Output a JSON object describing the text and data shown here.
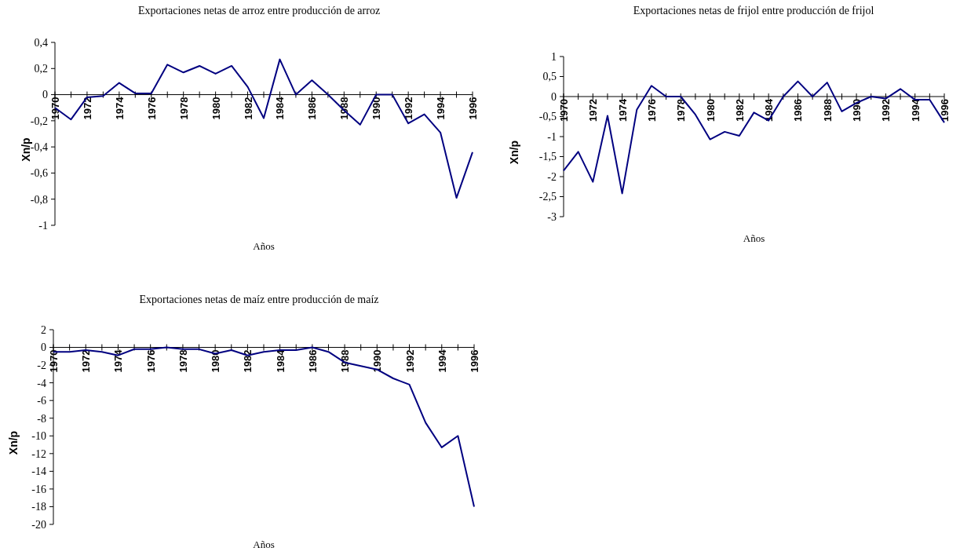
{
  "chart_data": [
    {
      "type": "line",
      "title": "Exportaciones netas de arroz entre producción de arroz",
      "xlabel": "Años",
      "ylabel": "Xn/p",
      "categories": [
        "1970",
        null,
        "1972",
        null,
        "1974",
        null,
        "1976",
        null,
        "1978",
        null,
        "1980",
        null,
        "1982",
        null,
        "1984",
        null,
        "1986",
        null,
        "1988",
        null,
        "1990",
        null,
        "1992",
        null,
        "1994",
        null,
        "1996"
      ],
      "series": [
        {
          "color": "#000080",
          "values": [
            -0.1,
            -0.19,
            -0.02,
            -0.01,
            0.09,
            0.01,
            0.01,
            0.23,
            0.17,
            0.22,
            0.16,
            0.22,
            0.06,
            -0.18,
            0.27,
            0,
            0.11,
            0,
            -0.12,
            -0.23,
            0,
            0,
            -0.22,
            -0.15,
            -0.29,
            -0.79,
            -0.44
          ]
        }
      ],
      "ylim": [
        -1,
        0.4
      ],
      "yticks": [
        {
          "value": -1,
          "label": "-1"
        },
        {
          "value": -0.8,
          "label": "-0,8"
        },
        {
          "value": -0.6,
          "label": "-0,6"
        },
        {
          "value": -0.4,
          "label": "-0,4"
        },
        {
          "value": -0.2,
          "label": "-0,2"
        },
        0,
        {
          "value": 0.2,
          "label": "0,2"
        },
        {
          "value": 0.4,
          "label": "0,4"
        }
      ]
    },
    {
      "type": "line",
      "title": "Exportaciones netas de frijol entre producción de frijol",
      "xlabel": "Años",
      "ylabel": "Xn/p",
      "categories": [
        "1970",
        null,
        "1972",
        null,
        "1974",
        null,
        "1976",
        null,
        "1978",
        null,
        "1980",
        null,
        "1982",
        null,
        "1984",
        null,
        "1986",
        null,
        "1988",
        null,
        "1990",
        null,
        "1992",
        null,
        "1994",
        null,
        "1996"
      ],
      "series": [
        {
          "color": "#000080",
          "values": [
            -1.85,
            -1.38,
            -2.13,
            -0.48,
            -2.42,
            -0.33,
            0.27,
            0,
            0,
            -0.45,
            -1.07,
            -0.88,
            -0.98,
            -0.4,
            -0.6,
            0,
            0.38,
            0,
            0.35,
            -0.37,
            -0.16,
            0,
            -0.05,
            0.19,
            -0.08,
            -0.08,
            -0.65
          ]
        }
      ],
      "ylim": [
        -3,
        1
      ],
      "yticks": [
        -3,
        {
          "value": -2.5,
          "label": "-2,5"
        },
        -2,
        {
          "value": -1.5,
          "label": "-1,5"
        },
        -1,
        {
          "value": -0.5,
          "label": "-0,5"
        },
        0,
        {
          "value": 0.5,
          "label": "0,5"
        },
        1
      ]
    },
    {
      "type": "line",
      "title": "Exportaciones netas de maíz entre producción de maíz",
      "xlabel": "Años",
      "ylabel": "Xn/p",
      "categories": [
        "1970",
        null,
        "1972",
        null,
        "1974",
        null,
        "1976",
        null,
        "1978",
        null,
        "1980",
        null,
        "1982",
        null,
        "1984",
        null,
        "1986",
        null,
        "1988",
        null,
        "1990",
        null,
        "1992",
        null,
        "1994",
        null,
        "1996"
      ],
      "series": [
        {
          "color": "#000080",
          "values": [
            -0.5,
            -0.5,
            -0.3,
            -0.5,
            -0.9,
            -0.2,
            -0.2,
            0,
            -0.2,
            -0.2,
            -0.7,
            -0.3,
            -0.9,
            -0.5,
            -0.3,
            -0.3,
            0,
            -0.5,
            -1.7,
            -2.1,
            -2.5,
            -3.5,
            -4.2,
            -8.5,
            -11.3,
            -10,
            -18
          ]
        }
      ],
      "ylim": [
        -20,
        2
      ],
      "yticks": [
        -20,
        -18,
        -16,
        -14,
        -12,
        -10,
        -8,
        -6,
        -4,
        -2,
        0,
        2
      ]
    }
  ]
}
